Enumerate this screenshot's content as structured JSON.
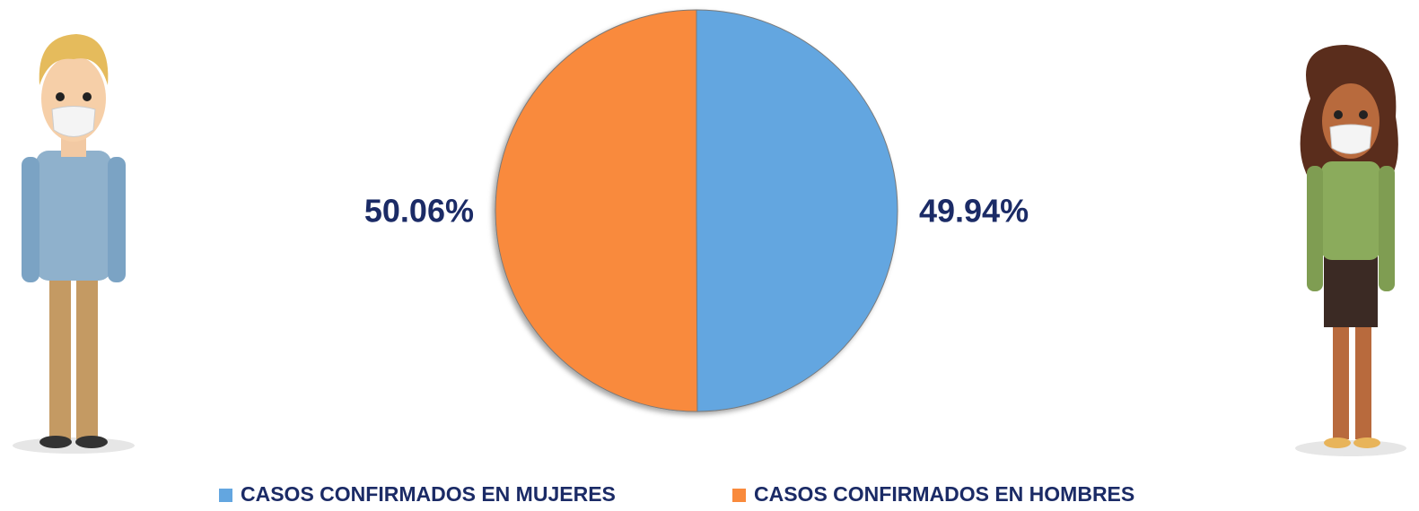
{
  "chart_data": {
    "type": "pie",
    "categories": [
      "CASOS CONFIRMADOS EN MUJERES",
      "CASOS CONFIRMADOS EN HOMBRES"
    ],
    "values": [
      49.94,
      50.06
    ],
    "value_labels": [
      "49.94%",
      "50.06%"
    ],
    "colors": [
      "#63a6e0",
      "#f98a3c"
    ]
  }
}
